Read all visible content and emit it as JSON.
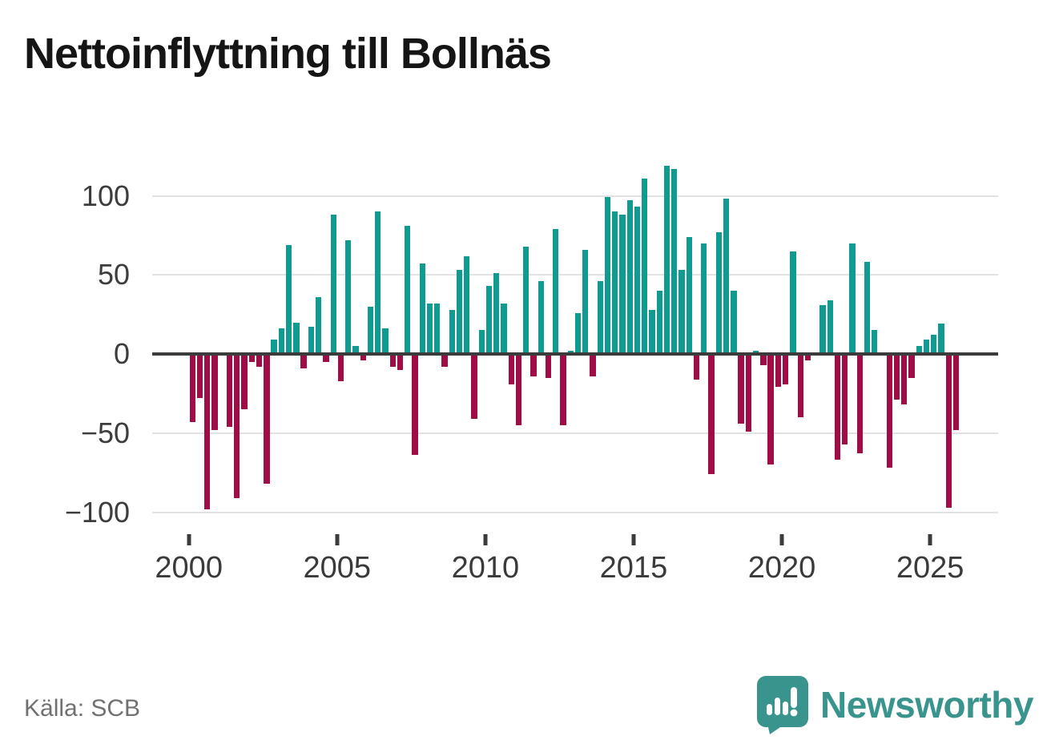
{
  "title": "Nettoinflyttning till Bollnäs",
  "source_label": "Källa: SCB",
  "brand": {
    "name": "Newsworthy"
  },
  "colors": {
    "positive": "#0f9b8f",
    "negative": "#a00c45",
    "zero_line": "#3b3b3b",
    "gridline": "#e2e2e2",
    "brand_teal": "#3a948e"
  },
  "y_axis": {
    "ticks": [
      {
        "value": 100,
        "label": "100"
      },
      {
        "value": 50,
        "label": "50"
      },
      {
        "value": 0,
        "label": "0"
      },
      {
        "value": -50,
        "label": "−50"
      },
      {
        "value": -100,
        "label": "−100"
      }
    ]
  },
  "x_axis": {
    "ticks": [
      {
        "year": 2000,
        "label": "2000"
      },
      {
        "year": 2005,
        "label": "2005"
      },
      {
        "year": 2010,
        "label": "2010"
      },
      {
        "year": 2015,
        "label": "2015"
      },
      {
        "year": 2020,
        "label": "2020"
      },
      {
        "year": 2025,
        "label": "2025"
      }
    ]
  },
  "chart_data": {
    "type": "bar",
    "title": "Nettoinflyttning till Bollnäs",
    "xlabel": "",
    "ylabel": "",
    "ylim": [
      -110,
      125
    ],
    "grid": true,
    "unit": "persons per quarter (net migration)",
    "categories": [
      "2000Q1",
      "2000Q2",
      "2000Q3",
      "2000Q4",
      "2001Q1",
      "2001Q2",
      "2001Q3",
      "2001Q4",
      "2002Q1",
      "2002Q2",
      "2002Q3",
      "2002Q4",
      "2003Q1",
      "2003Q2",
      "2003Q3",
      "2003Q4",
      "2004Q1",
      "2004Q2",
      "2004Q3",
      "2004Q4",
      "2005Q1",
      "2005Q2",
      "2005Q3",
      "2005Q4",
      "2006Q1",
      "2006Q2",
      "2006Q3",
      "2006Q4",
      "2007Q1",
      "2007Q2",
      "2007Q3",
      "2007Q4",
      "2008Q1",
      "2008Q2",
      "2008Q3",
      "2008Q4",
      "2009Q1",
      "2009Q2",
      "2009Q3",
      "2009Q4",
      "2010Q1",
      "2010Q2",
      "2010Q3",
      "2010Q4",
      "2011Q1",
      "2011Q2",
      "2011Q3",
      "2011Q4",
      "2012Q1",
      "2012Q2",
      "2012Q3",
      "2012Q4",
      "2013Q1",
      "2013Q2",
      "2013Q3",
      "2013Q4",
      "2014Q1",
      "2014Q2",
      "2014Q3",
      "2014Q4",
      "2015Q1",
      "2015Q2",
      "2015Q3",
      "2015Q4",
      "2016Q1",
      "2016Q2",
      "2016Q3",
      "2016Q4",
      "2017Q1",
      "2017Q2",
      "2017Q3",
      "2017Q4",
      "2018Q1",
      "2018Q2",
      "2018Q3",
      "2018Q4",
      "2019Q1",
      "2019Q2",
      "2019Q3",
      "2019Q4",
      "2020Q1",
      "2020Q2",
      "2020Q3",
      "2020Q4",
      "2021Q1",
      "2021Q2",
      "2021Q3",
      "2021Q4",
      "2022Q1",
      "2022Q2",
      "2022Q3",
      "2022Q4",
      "2023Q1",
      "2023Q2",
      "2023Q3",
      "2023Q4",
      "2024Q1",
      "2024Q2",
      "2024Q3",
      "2024Q4",
      "2025Q1",
      "2025Q2",
      "2025Q3",
      "2025Q4"
    ],
    "values": [
      -43,
      -28,
      -98,
      -48,
      0,
      -46,
      -91,
      -35,
      -5,
      -8,
      -82,
      9,
      16,
      69,
      20,
      -9,
      17,
      36,
      -5,
      88,
      -17,
      72,
      5,
      -4,
      30,
      90,
      16,
      -8,
      -10,
      81,
      -64,
      57,
      32,
      32,
      -8,
      28,
      53,
      62,
      -41,
      15,
      43,
      51,
      32,
      -19,
      -45,
      68,
      -14,
      46,
      -15,
      79,
      -45,
      2,
      26,
      66,
      -14,
      46,
      99,
      90,
      88,
      97,
      93,
      111,
      28,
      40,
      119,
      117,
      53,
      74,
      -16,
      70,
      -76,
      77,
      98,
      40,
      -44,
      -49,
      2,
      -7,
      -70,
      -21,
      -19,
      65,
      -40,
      -4,
      0,
      31,
      34,
      -67,
      -57,
      70,
      -63,
      58,
      15,
      0,
      -72,
      -29,
      -32,
      -15,
      5,
      9,
      12,
      19,
      -97,
      -48
    ]
  }
}
